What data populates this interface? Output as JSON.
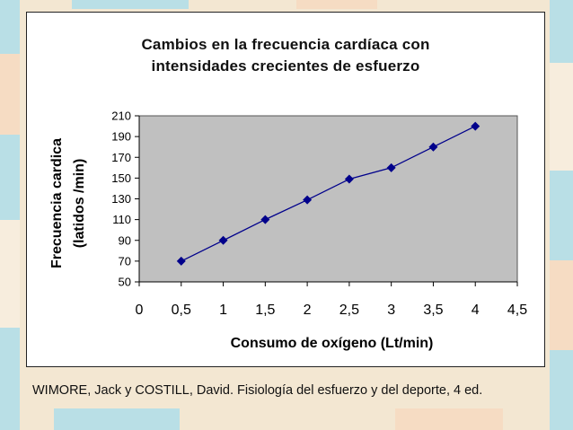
{
  "colors": {
    "background": "#f3e7d2",
    "plot_area": "#c0c0c0",
    "series": "#00008b",
    "tile_blue": "#b9dfe6",
    "tile_peach": "#f6dcc3"
  },
  "chart_data": {
    "type": "line",
    "title_lines": [
      "Cambios en la frecuencia cardíaca con",
      "intensidades crecientes de esfuerzo"
    ],
    "xlabel": "Consumo de oxígeno (Lt/min)",
    "ylabel_lines": [
      "Frecuencia cardica",
      "(latidos /min)"
    ],
    "xlim": [
      0,
      4.5
    ],
    "ylim": [
      50,
      210
    ],
    "x_ticks": [
      "0",
      "0,5",
      "1",
      "1,5",
      "2",
      "2,5",
      "3",
      "3,5",
      "4",
      "4,5"
    ],
    "y_ticks": [
      "50",
      "70",
      "90",
      "110",
      "130",
      "150",
      "170",
      "190",
      "210"
    ],
    "grid": false,
    "series": [
      {
        "marker": "diamond",
        "x": [
          0.5,
          1,
          1.5,
          2,
          2.5,
          3,
          3.5,
          4
        ],
        "y": [
          70,
          90,
          110,
          129,
          149,
          160,
          180,
          200
        ]
      }
    ]
  },
  "caption": "WIMORE, Jack y COSTILL, David. Fisiología del esfuerzo y del deporte, 4 ed."
}
